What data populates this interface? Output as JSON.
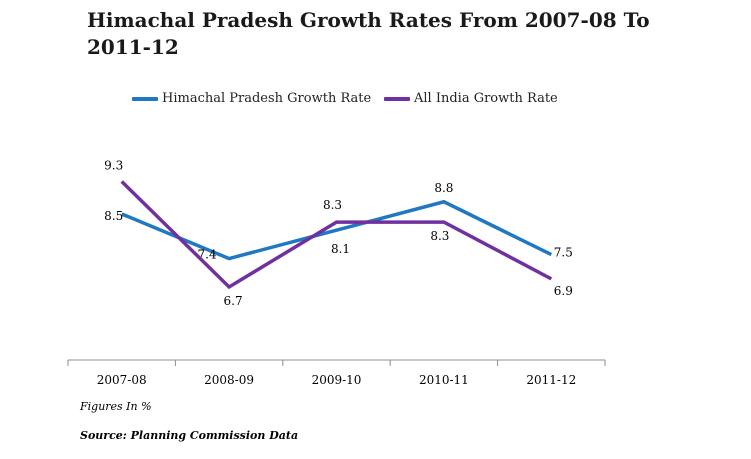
{
  "title": "Himachal Pradesh Growth Rates From 2007-08 To 2011-12",
  "note": "Figures In %",
  "source": "Source: Planning Commission Data",
  "chart_data": {
    "type": "line",
    "title": "Himachal Pradesh Growth Rates From 2007-08 To 2011-12",
    "xlabel": "",
    "ylabel": "",
    "categories": [
      "2007-08",
      "2008-09",
      "2009-10",
      "2010-11",
      "2011-12"
    ],
    "series": [
      {
        "name": "Himachal Pradesh Growth Rate",
        "values": [
          8.5,
          7.4,
          8.1,
          8.8,
          7.5
        ],
        "labels": [
          "8.5",
          "7.4",
          "8.1",
          "8.8",
          "7.5"
        ],
        "color": "#1f78c1"
      },
      {
        "name": "All India Growth Rate",
        "values": [
          9.3,
          6.7,
          8.3,
          8.3,
          6.9
        ],
        "labels": [
          "9.3",
          "6.7",
          "8.3",
          "8.3",
          "6.9"
        ],
        "color": "#7030a0"
      }
    ],
    "ylim": [
      4.9,
      10.2
    ],
    "grid": false,
    "legend": "top"
  }
}
